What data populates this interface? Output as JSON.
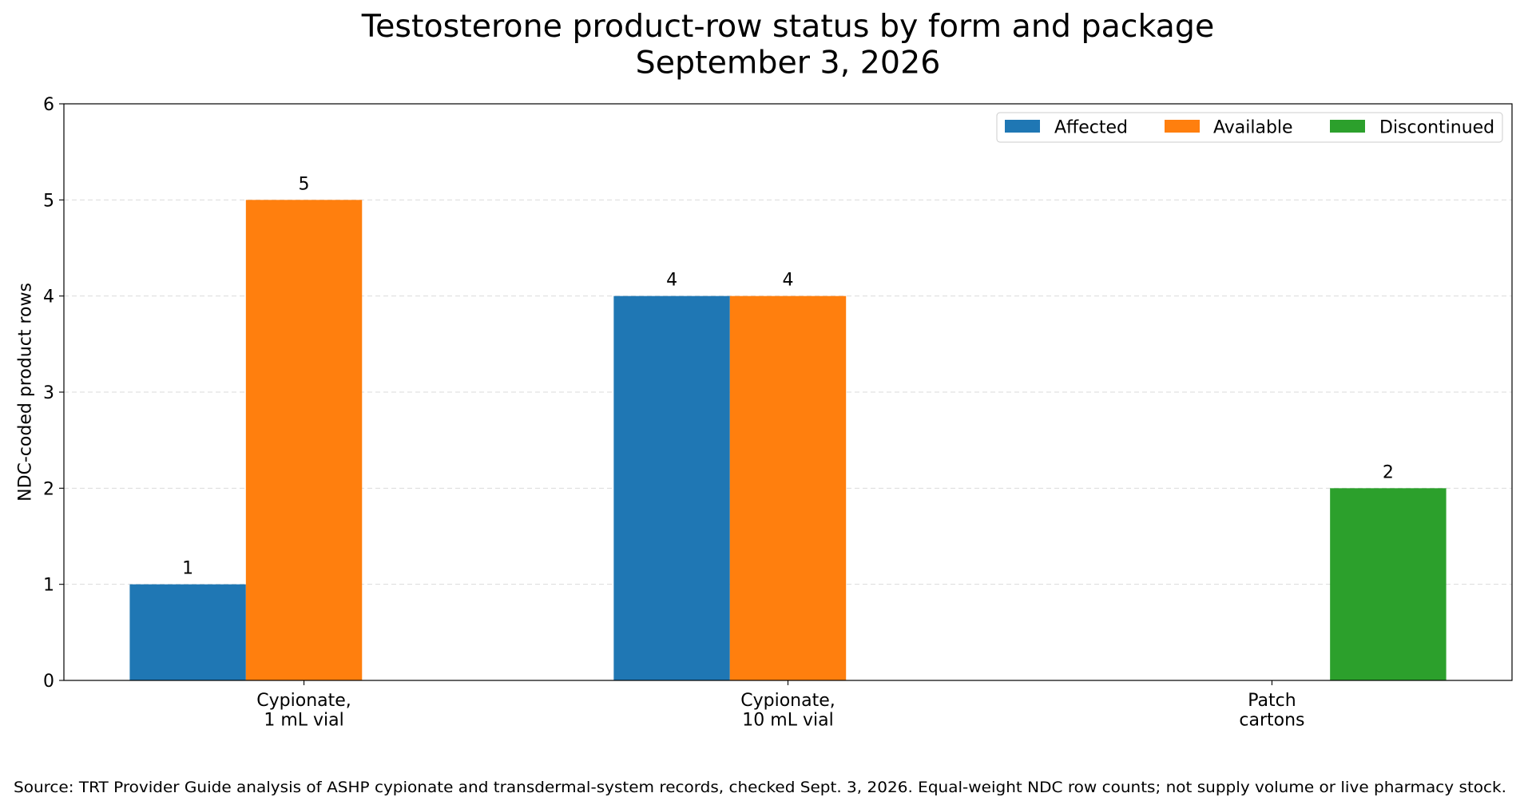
{
  "chart_data": {
    "type": "bar",
    "title": "Testosterone product-row status by form and package\nSeptember 3, 2026",
    "xlabel": "",
    "ylabel": "NDC-coded product rows",
    "categories": [
      "Cypionate,\n1 mL vial",
      "Cypionate,\n10 mL vial",
      "Patch\ncartons"
    ],
    "series": [
      {
        "name": "Affected",
        "color": "#1f77b4",
        "values": [
          1,
          4,
          0
        ]
      },
      {
        "name": "Available",
        "color": "#ff7f0e",
        "values": [
          5,
          4,
          0
        ]
      },
      {
        "name": "Discontinued",
        "color": "#2ca02c",
        "values": [
          0,
          0,
          2
        ]
      }
    ],
    "ylim": [
      0,
      6
    ],
    "yticks": [
      0,
      1,
      2,
      3,
      4,
      5,
      6
    ],
    "grid": "y",
    "legend": "top-right",
    "value_labels": true,
    "source_note": "Source: TRT Provider Guide analysis of ASHP cypionate and transdermal-system records, checked Sept. 3, 2026. Equal-weight NDC row counts; not supply volume or live pharmacy stock."
  }
}
